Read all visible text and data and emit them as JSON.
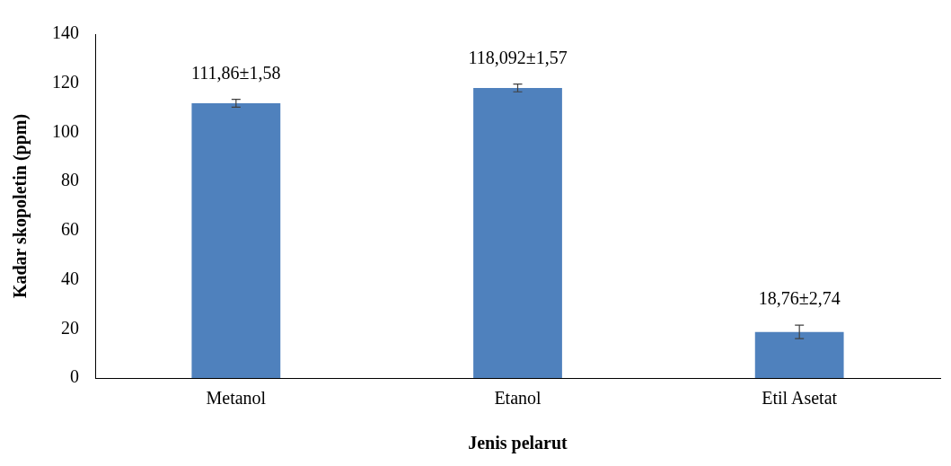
{
  "chart_data": {
    "type": "bar",
    "xlabel": "Jenis pelarut",
    "ylabel": "Kadar skopoletin (ppm)",
    "categories": [
      "Metanol",
      "Etanol",
      "Etil Asetat"
    ],
    "values": [
      111.86,
      118.092,
      18.76
    ],
    "errors": [
      1.58,
      1.57,
      2.74
    ],
    "value_labels": [
      "111,86±1,58",
      "118,092±1,57",
      "18,76±2,74"
    ],
    "color": "#4f81bd",
    "ylim": [
      0,
      140
    ],
    "yticks": [
      0,
      20,
      40,
      60,
      80,
      100,
      120,
      140
    ],
    "grid": false,
    "legend": false
  }
}
